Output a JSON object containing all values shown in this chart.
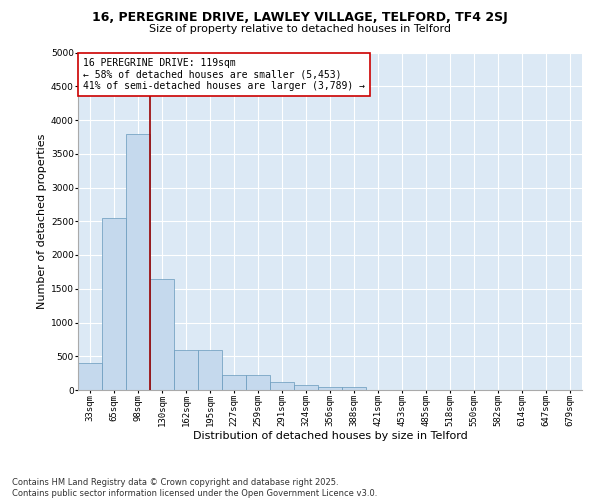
{
  "title1": "16, PEREGRINE DRIVE, LAWLEY VILLAGE, TELFORD, TF4 2SJ",
  "title2": "Size of property relative to detached houses in Telford",
  "xlabel": "Distribution of detached houses by size in Telford",
  "ylabel": "Number of detached properties",
  "categories": [
    "33sqm",
    "65sqm",
    "98sqm",
    "130sqm",
    "162sqm",
    "195sqm",
    "227sqm",
    "259sqm",
    "291sqm",
    "324sqm",
    "356sqm",
    "388sqm",
    "421sqm",
    "453sqm",
    "485sqm",
    "518sqm",
    "550sqm",
    "582sqm",
    "614sqm",
    "647sqm",
    "679sqm"
  ],
  "values": [
    400,
    2550,
    3800,
    1650,
    600,
    600,
    220,
    220,
    120,
    80,
    50,
    40,
    0,
    0,
    0,
    0,
    0,
    0,
    0,
    0,
    0
  ],
  "bar_color": "#c5d9ed",
  "bar_edge_color": "#6699bb",
  "vline_color": "#990000",
  "vline_x_index": 2.5,
  "annotation_text": "16 PEREGRINE DRIVE: 119sqm\n← 58% of detached houses are smaller (5,453)\n41% of semi-detached houses are larger (3,789) →",
  "annotation_box_facecolor": "#ffffff",
  "annotation_box_edgecolor": "#cc0000",
  "plot_bg_color": "#dce9f5",
  "fig_bg_color": "#ffffff",
  "ylim": [
    0,
    5000
  ],
  "yticks": [
    0,
    500,
    1000,
    1500,
    2000,
    2500,
    3000,
    3500,
    4000,
    4500,
    5000
  ],
  "title1_fontsize": 9,
  "title2_fontsize": 8,
  "xlabel_fontsize": 8,
  "ylabel_fontsize": 8,
  "tick_fontsize": 6.5,
  "annotation_fontsize": 7,
  "footer_fontsize": 6,
  "footer1": "Contains HM Land Registry data © Crown copyright and database right 2025.",
  "footer2": "Contains public sector information licensed under the Open Government Licence v3.0."
}
